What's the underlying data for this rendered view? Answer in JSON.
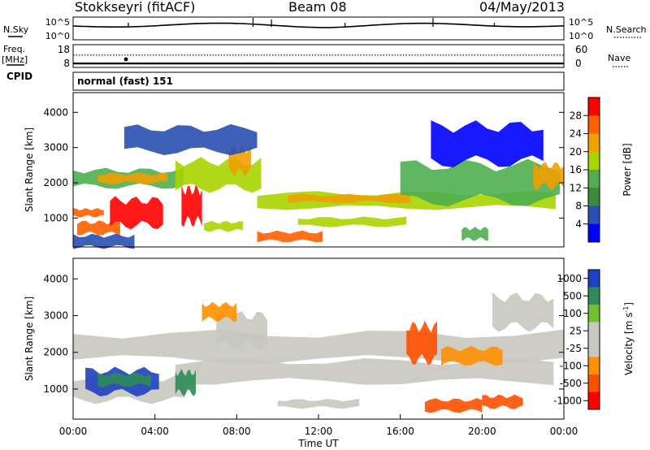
{
  "header": {
    "station": "Stokkseyri (fitACF)",
    "beam": "Beam 08",
    "date": "04/May/2013"
  },
  "noise_panel": {
    "left_label": "N.Sky",
    "left_ticks": [
      "10^5",
      "10^0"
    ],
    "right_ticks": [
      "10^5",
      "10^0"
    ],
    "right_label": "N.Search"
  },
  "freq_panel": {
    "left_label_line1": "Freq.",
    "left_label_line2": "[MHz]",
    "left_ticks": [
      "18",
      "8"
    ],
    "right_ticks": [
      "60",
      "0"
    ],
    "right_label": "Nave",
    "frequency_mhz": 10.3,
    "nave": 50
  },
  "cpid": {
    "label": "CPID",
    "value": "normal (fast) 151"
  },
  "colors": {
    "power": [
      "#0000ff",
      "#2a4fb0",
      "#3d8a3d",
      "#4fae50",
      "#a8d400",
      "#f0a000",
      "#ff6000",
      "#ff0000"
    ],
    "velocity": [
      "#ff0000",
      "#ff5000",
      "#ff9000",
      "#c8c8c0",
      "#c8c8c0",
      "#70c030",
      "#2e8b57",
      "#2040c0"
    ],
    "ground_scatter": "#c8c8c0"
  },
  "chart_data": [
    {
      "type": "heatmap",
      "name": "power",
      "ylabel": "Slant Range [km]",
      "ylim": [
        180,
        4560
      ],
      "yticks": [
        "1000",
        "2000",
        "3000",
        "4000"
      ],
      "xlim_hours": [
        0,
        24
      ],
      "colorbar": {
        "label": "Power [dB]",
        "range": [
          0,
          32
        ],
        "ticks": [
          "4",
          "8",
          "12",
          "16",
          "20",
          "24",
          "28"
        ]
      },
      "regions": [
        {
          "t0": 0.0,
          "t1": 5.4,
          "r0": 1900,
          "r1": 2350,
          "level": 3
        },
        {
          "t0": 1.2,
          "t1": 4.6,
          "r0": 2000,
          "r1": 2250,
          "level": 5
        },
        {
          "t0": 0.2,
          "t1": 2.3,
          "r0": 560,
          "r1": 880,
          "level": 6
        },
        {
          "t0": 1.8,
          "t1": 4.4,
          "r0": 800,
          "r1": 1500,
          "level": 7
        },
        {
          "t0": 0.0,
          "t1": 1.5,
          "r0": 1050,
          "r1": 1250,
          "level": 6
        },
        {
          "t0": 5.3,
          "t1": 6.3,
          "r0": 900,
          "r1": 1800,
          "level": 7
        },
        {
          "t0": 5.0,
          "t1": 9.2,
          "r0": 1850,
          "r1": 2600,
          "level": 4
        },
        {
          "t0": 7.6,
          "t1": 8.7,
          "r0": 2300,
          "r1": 2950,
          "level": 5
        },
        {
          "t0": 9.0,
          "t1": 23.6,
          "r0": 1300,
          "r1": 1700,
          "level": 4
        },
        {
          "t0": 10.5,
          "t1": 16.5,
          "r0": 1450,
          "r1": 1650,
          "level": 5
        },
        {
          "t0": 16.0,
          "t1": 23.8,
          "r0": 1500,
          "r1": 2500,
          "level": 3
        },
        {
          "t0": 22.5,
          "t1": 24.0,
          "r0": 1900,
          "r1": 2500,
          "level": 5
        },
        {
          "t0": 9.0,
          "t1": 12.2,
          "r0": 350,
          "r1": 600,
          "level": 6
        },
        {
          "t0": 11.0,
          "t1": 16.3,
          "r0": 780,
          "r1": 1000,
          "level": 4
        },
        {
          "t0": 6.4,
          "t1": 8.3,
          "r0": 650,
          "r1": 880,
          "level": 4
        },
        {
          "t0": 19.0,
          "t1": 20.3,
          "r0": 400,
          "r1": 700,
          "level": 3
        },
        {
          "t0": 2.5,
          "t1": 9.0,
          "r0": 2900,
          "r1": 3550,
          "level": 1
        },
        {
          "t0": 17.5,
          "t1": 23.0,
          "r0": 2600,
          "r1": 3600,
          "level": 0
        },
        {
          "t0": 0.0,
          "t1": 3.0,
          "r0": 180,
          "r1": 500,
          "level": 1
        }
      ]
    },
    {
      "type": "heatmap",
      "name": "velocity",
      "ylabel": "Slant Range [km]",
      "xlabel": "Time UT",
      "ylim": [
        180,
        4560
      ],
      "yticks": [
        "1000",
        "2000",
        "3000",
        "4000"
      ],
      "xlim_hours": [
        0,
        24
      ],
      "xticks": [
        "00:00",
        "04:00",
        "08:00",
        "12:00",
        "16:00",
        "20:00",
        "00:00"
      ],
      "colorbar": {
        "label": "Velocity [m s",
        "label_sup": "-1",
        "label_end": "]",
        "ticks": [
          "1000",
          "500",
          "100",
          "25",
          "-25",
          "-100",
          "-500",
          "-1000"
        ]
      },
      "regions": [
        {
          "t0": 0.0,
          "t1": 24.0,
          "r0": 1800,
          "r1": 2500,
          "level": 3
        },
        {
          "t0": 0.0,
          "t1": 5.5,
          "r0": 700,
          "r1": 1300,
          "level": 3
        },
        {
          "t0": 5.0,
          "t1": 23.5,
          "r0": 1200,
          "r1": 1750,
          "level": 3
        },
        {
          "t0": 7.0,
          "t1": 9.5,
          "r0": 2200,
          "r1": 3000,
          "level": 3
        },
        {
          "t0": 0.6,
          "t1": 4.2,
          "r0": 900,
          "r1": 1500,
          "level": 7
        },
        {
          "t0": 1.2,
          "t1": 3.8,
          "r0": 1100,
          "r1": 1400,
          "level": 6
        },
        {
          "t0": 5.0,
          "t1": 6.0,
          "r0": 900,
          "r1": 1450,
          "level": 6
        },
        {
          "t0": 16.3,
          "t1": 17.8,
          "r0": 1800,
          "r1": 2700,
          "level": 1
        },
        {
          "t0": 17.2,
          "t1": 20.0,
          "r0": 400,
          "r1": 700,
          "level": 1
        },
        {
          "t0": 18.0,
          "t1": 21.0,
          "r0": 1700,
          "r1": 2100,
          "level": 2
        },
        {
          "t0": 20.0,
          "t1": 22.0,
          "r0": 500,
          "r1": 800,
          "level": 1
        },
        {
          "t0": 20.5,
          "t1": 23.5,
          "r0": 2700,
          "r1": 3500,
          "level": 4
        },
        {
          "t0": 6.3,
          "t1": 8.0,
          "r0": 2900,
          "r1": 3300,
          "level": 2
        },
        {
          "t0": 10.0,
          "t1": 14.0,
          "r0": 500,
          "r1": 700,
          "level": 3
        }
      ]
    }
  ]
}
